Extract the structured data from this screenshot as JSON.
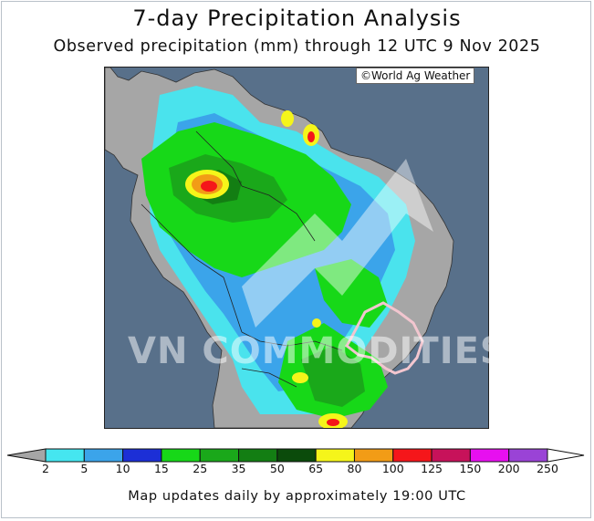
{
  "title": "7-day Precipitation Analysis",
  "subtitle": "Observed precipitation (mm) through 12 UTC 9 Nov 2025",
  "credit": "World Ag Weather",
  "watermark": "VN COMMODITIES",
  "footer": "Map updates daily by approximately 19:00 UTC",
  "colorbar": {
    "ticks": [
      "2",
      "5",
      "10",
      "15",
      "25",
      "35",
      "50",
      "65",
      "80",
      "100",
      "125",
      "150",
      "200",
      "250"
    ],
    "colors": [
      "#45e6f0",
      "#3ba4ea",
      "#1c2fd6",
      "#17d818",
      "#1aa81a",
      "#137e13",
      "#0b4b0b",
      "#f5f51a",
      "#f29c16",
      "#f5161a",
      "#c7125a",
      "#e70ff0",
      "#9a43d6"
    ]
  },
  "colors": {
    "ocean": "#58708a",
    "land_gray": "#a6a6a6",
    "border": "#222222"
  }
}
